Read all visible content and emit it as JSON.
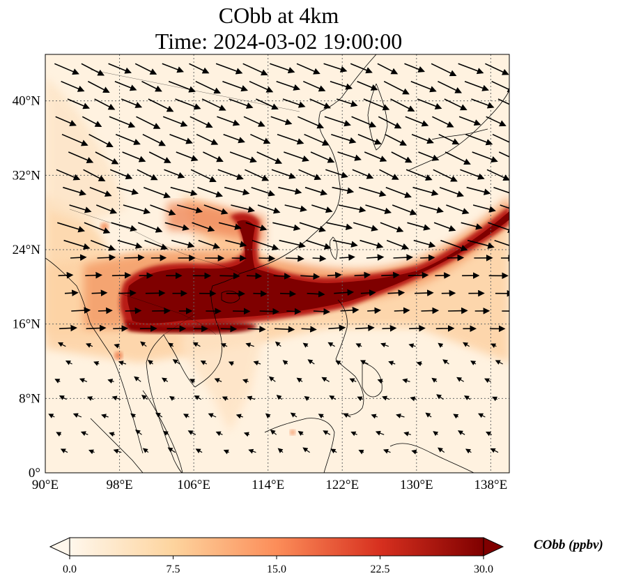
{
  "title": {
    "line1": "CObb at 4km",
    "line2": "Time: 2024-03-02 19:00:00"
  },
  "map": {
    "extent": {
      "lon_min": 90,
      "lon_max": 140,
      "lat_min": 0,
      "lat_max": 45
    },
    "lon_ticks": [
      {
        "value": 90,
        "label": "90°E"
      },
      {
        "value": 98,
        "label": "98°E"
      },
      {
        "value": 106,
        "label": "106°E"
      },
      {
        "value": 114,
        "label": "114°E"
      },
      {
        "value": 122,
        "label": "122°E"
      },
      {
        "value": 130,
        "label": "130°E"
      },
      {
        "value": 138,
        "label": "138°E"
      }
    ],
    "lat_ticks": [
      {
        "value": 0,
        "label": "0°"
      },
      {
        "value": 8,
        "label": "8°N"
      },
      {
        "value": 16,
        "label": "16°N"
      },
      {
        "value": 24,
        "label": "24°N"
      },
      {
        "value": 32,
        "label": "32°N"
      },
      {
        "value": 40,
        "label": "40°N"
      }
    ],
    "gridlines": true,
    "field": "CObb",
    "wind_vectors": true
  },
  "colorbar": {
    "label": "CObb (ppbv)",
    "min": 0,
    "max": 30,
    "ticks": [
      "0.0",
      "7.5",
      "15.0",
      "22.5",
      "30.0"
    ],
    "colormap": "OrRd",
    "colors": [
      "#fff7ec",
      "#fdd49e",
      "#fc8d59",
      "#d7301f",
      "#7f0000"
    ],
    "extend": "both"
  },
  "chart_data": {
    "type": "heatmap",
    "plume_core_track": [
      {
        "lon": 97,
        "lat": 20.0,
        "value": 30
      },
      {
        "lon": 100,
        "lat": 20.5,
        "value": 30
      },
      {
        "lon": 104,
        "lat": 20.5,
        "value": 30
      },
      {
        "lon": 108,
        "lat": 20.0,
        "value": 30
      },
      {
        "lon": 112,
        "lat": 20.0,
        "value": 30
      },
      {
        "lon": 116,
        "lat": 19.5,
        "value": 30
      },
      {
        "lon": 120,
        "lat": 19.0,
        "value": 30
      },
      {
        "lon": 124,
        "lat": 19.5,
        "value": 30
      },
      {
        "lon": 128,
        "lat": 20.5,
        "value": 30
      },
      {
        "lon": 132,
        "lat": 22.0,
        "value": 30
      },
      {
        "lon": 136,
        "lat": 24.5,
        "value": 30
      },
      {
        "lon": 140,
        "lat": 27.5,
        "value": 30
      }
    ],
    "background_value": 2
  }
}
